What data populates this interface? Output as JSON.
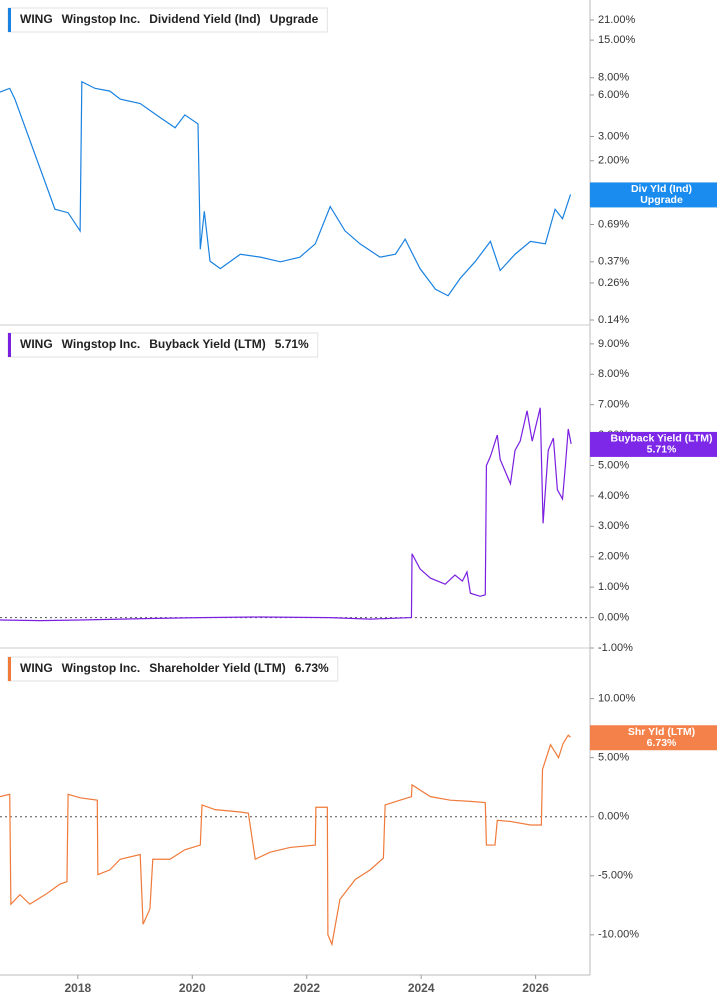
{
  "chart_data": [
    {
      "type": "line",
      "log_y": true,
      "ticker": "WING",
      "company": "Wingstop Inc.",
      "xlim": [
        2016.64,
        2026.95
      ],
      "x": [
        2016.64,
        2016.81,
        2016.9,
        2017.6,
        2017.83,
        2018.04,
        2018.07,
        2018.3,
        2018.56,
        2018.74,
        2019.09,
        2019.44,
        2019.7,
        2019.87,
        2020.1,
        2020.14,
        2020.21,
        2020.31,
        2020.49,
        2020.84,
        2021.19,
        2021.54,
        2021.88,
        2022.15,
        2022.41,
        2022.67,
        2022.93,
        2023.28,
        2023.55,
        2023.72,
        2023.98,
        2024.25,
        2024.47,
        2024.68,
        2024.94,
        2025.21,
        2025.38,
        2025.64,
        2025.91,
        2026.17,
        2026.34,
        2026.47,
        2026.61
      ],
      "series": [
        {
          "name": "Dividend Yield (Ind)",
          "short_name": "Div Yld (Ind)",
          "latest": "Upgrade",
          "color": "#1a82e0",
          "label_color": "#1a8cf0",
          "values": [
            6.3,
            6.7,
            5.6,
            0.89,
            0.84,
            0.62,
            7.48,
            6.7,
            6.4,
            5.6,
            5.2,
            4.11,
            3.47,
            4.3,
            3.7,
            0.456,
            0.86,
            0.374,
            0.33,
            0.42,
            0.4,
            0.37,
            0.4,
            0.5,
            0.93,
            0.62,
            0.5,
            0.4,
            0.42,
            0.54,
            0.33,
            0.234,
            0.21,
            0.28,
            0.37,
            0.52,
            0.32,
            0.42,
            0.52,
            0.5,
            0.89,
            0.76,
            1.14
          ]
        }
      ],
      "ylim": [
        0.131,
        29.3
      ],
      "yticks": [
        {
          "value": 21,
          "label": "21.00%"
        },
        {
          "value": 15,
          "label": "15.00%"
        },
        {
          "value": 8,
          "label": "8.00%"
        },
        {
          "value": 6,
          "label": "6.00%"
        },
        {
          "value": 3,
          "label": "3.00%"
        },
        {
          "value": 2,
          "label": "2.00%"
        },
        {
          "value": 1,
          "label": "1.00%"
        },
        {
          "value": 0.69,
          "label": "0.69%"
        },
        {
          "value": 0.37,
          "label": "0.37%"
        },
        {
          "value": 0.26,
          "label": "0.26%"
        },
        {
          "value": 0.14,
          "label": "0.14%"
        }
      ]
    },
    {
      "type": "line",
      "zero_line": true,
      "ticker": "WING",
      "company": "Wingstop Inc.",
      "xlim": [
        2016.64,
        2026.95
      ],
      "x": [
        2016.64,
        2017.34,
        2018.04,
        2019.26,
        2020.14,
        2021.19,
        2022.41,
        2023.11,
        2023.83,
        2023.84,
        2023.98,
        2024.16,
        2024.42,
        2024.59,
        2024.72,
        2024.8,
        2024.86,
        2025.03,
        2025.12,
        2025.14,
        2025.21,
        2025.33,
        2025.38,
        2025.56,
        2025.64,
        2025.73,
        2025.85,
        2025.94,
        2026.08,
        2026.13,
        2026.22,
        2026.31,
        2026.38,
        2026.47,
        2026.52,
        2026.57,
        2026.62
      ],
      "series": [
        {
          "name": "Buyback Yield (LTM)",
          "short_name": "Buyback Yield (LTM)",
          "latest": "5.71%",
          "color": "#7a1fe0",
          "label_color": "#7d27e8",
          "values": [
            -0.08,
            -0.1,
            -0.08,
            -0.03,
            0.0,
            0.02,
            0.0,
            -0.05,
            0.0,
            2.1,
            1.6,
            1.3,
            1.1,
            1.4,
            1.2,
            1.5,
            0.8,
            0.7,
            0.75,
            5.0,
            5.3,
            6.0,
            5.2,
            4.4,
            5.5,
            5.8,
            6.8,
            5.8,
            6.9,
            3.1,
            5.5,
            5.9,
            4.2,
            3.9,
            5.0,
            6.2,
            5.71
          ]
        }
      ],
      "ylim": [
        -1.0,
        9.62
      ],
      "yticks": [
        {
          "value": 9,
          "label": "9.00%"
        },
        {
          "value": 8,
          "label": "8.00%"
        },
        {
          "value": 7,
          "label": "7.00%"
        },
        {
          "value": 6,
          "label": "6.00%"
        },
        {
          "value": 5,
          "label": "5.00%"
        },
        {
          "value": 4,
          "label": "4.00%"
        },
        {
          "value": 3,
          "label": "3.00%"
        },
        {
          "value": 2,
          "label": "2.00%"
        },
        {
          "value": 1,
          "label": "1.00%"
        },
        {
          "value": 0,
          "label": "0.00%"
        },
        {
          "value": -1,
          "label": "-1.00%"
        }
      ]
    },
    {
      "type": "line",
      "zero_line": true,
      "ticker": "WING",
      "company": "Wingstop Inc.",
      "xlim": [
        2016.64,
        2026.95
      ],
      "xticks": [
        2018,
        2020,
        2022,
        2024,
        2026
      ],
      "x": [
        2016.64,
        2016.81,
        2016.83,
        2016.99,
        2017.16,
        2017.43,
        2017.69,
        2017.81,
        2017.83,
        2018.04,
        2018.34,
        2018.35,
        2018.56,
        2018.74,
        2019.09,
        2019.14,
        2019.26,
        2019.31,
        2019.61,
        2019.87,
        2020.14,
        2020.17,
        2020.4,
        2020.84,
        2020.98,
        2021.1,
        2021.36,
        2021.71,
        2022.15,
        2022.16,
        2022.36,
        2022.37,
        2022.44,
        2022.58,
        2022.85,
        2023.11,
        2023.34,
        2023.37,
        2023.63,
        2023.83,
        2023.84,
        2024.16,
        2024.51,
        2024.86,
        2025.12,
        2025.14,
        2025.29,
        2025.33,
        2025.56,
        2025.91,
        2026.1,
        2026.12,
        2026.26,
        2026.4,
        2026.48,
        2026.57,
        2026.61
      ],
      "series": [
        {
          "name": "Shareholder Yield (LTM)",
          "short_name": "Shr Yld (LTM)",
          "latest": "6.73%",
          "color": "#f07a3a",
          "label_color": "#f5814a",
          "values": [
            1.7,
            1.9,
            -7.4,
            -6.6,
            -7.4,
            -6.6,
            -5.7,
            -5.5,
            1.9,
            1.6,
            1.4,
            -4.9,
            -4.5,
            -3.6,
            -3.2,
            -9.1,
            -7.8,
            -3.6,
            -3.6,
            -2.8,
            -2.4,
            1.0,
            0.6,
            0.4,
            0.3,
            -3.6,
            -3.0,
            -2.6,
            -2.4,
            0.8,
            0.8,
            -10.0,
            -10.8,
            -7.0,
            -5.3,
            -4.5,
            -3.5,
            1.0,
            1.4,
            1.7,
            2.7,
            1.7,
            1.4,
            1.3,
            1.2,
            -2.4,
            -2.4,
            -0.3,
            -0.4,
            -0.7,
            -0.7,
            4.0,
            6.1,
            5.0,
            6.2,
            6.9,
            6.73
          ]
        }
      ],
      "ylim": [
        -13.4,
        14.2
      ],
      "yticks": [
        {
          "value": 10,
          "label": "10.00%"
        },
        {
          "value": 5,
          "label": "5.00%"
        },
        {
          "value": 0,
          "label": "0.00%"
        },
        {
          "value": -5,
          "label": "-5.00%"
        },
        {
          "value": -10,
          "label": "-10.00%"
        }
      ]
    }
  ]
}
